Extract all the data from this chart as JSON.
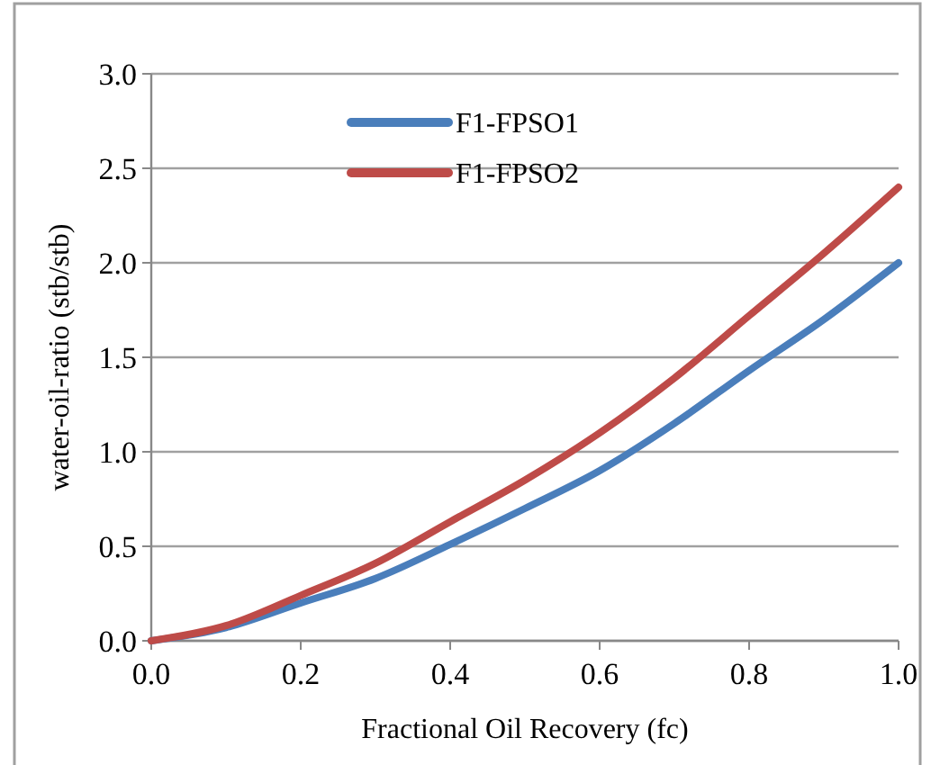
{
  "chart_data": {
    "type": "line",
    "xlabel": "Fractional Oil Recovery (fc)",
    "ylabel": "water-oil-ratio (stb/stb)",
    "x": [
      0,
      0.1,
      0.2,
      0.3,
      0.4,
      0.5,
      0.6,
      0.7,
      0.8,
      0.9,
      1.0
    ],
    "series": [
      {
        "name": "F1-FPSO1",
        "color": "#4a7ebb",
        "values": [
          0,
          0.07,
          0.2,
          0.33,
          0.51,
          0.7,
          0.9,
          1.15,
          1.43,
          1.7,
          2.0
        ]
      },
      {
        "name": "F1-FPSO2",
        "color": "#be4b48",
        "values": [
          0,
          0.08,
          0.24,
          0.41,
          0.63,
          0.85,
          1.1,
          1.39,
          1.72,
          2.05,
          2.4
        ]
      }
    ],
    "xlim": [
      0,
      1.0
    ],
    "ylim": [
      0,
      3.0
    ],
    "xticks": [
      {
        "value": 0,
        "label": "0.0"
      },
      0.2,
      0.4,
      0.6,
      0.8,
      {
        "value": 1,
        "label": "1.0"
      }
    ],
    "yticks": [
      {
        "value": 0,
        "label": "0.0"
      },
      0.5,
      {
        "value": 1,
        "label": "1.0"
      },
      1.5,
      {
        "value": 2,
        "label": "2.0"
      },
      2.5,
      {
        "value": 3,
        "label": "3.0"
      }
    ],
    "grid": "y",
    "legend": "top",
    "marker": "none",
    "line_style": "solid"
  }
}
